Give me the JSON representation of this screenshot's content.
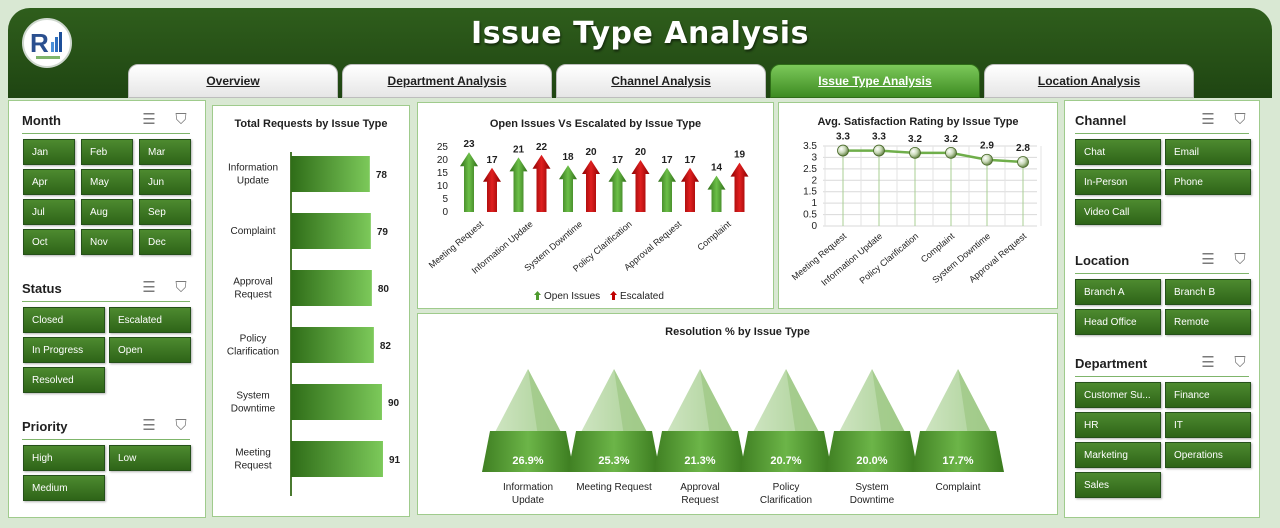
{
  "header": {
    "title": "Issue Type Analysis"
  },
  "tabs": [
    {
      "label": "Overview",
      "active": false
    },
    {
      "label": "Department Analysis",
      "active": false
    },
    {
      "label": "Channel Analysis",
      "active": false
    },
    {
      "label": "Issue Type Analysis",
      "active": true
    },
    {
      "label": "Location Analysis",
      "active": false
    }
  ],
  "filters": {
    "month": {
      "title": "Month",
      "items": [
        "Jan",
        "Feb",
        "Mar",
        "Apr",
        "May",
        "Jun",
        "Jul",
        "Aug",
        "Sep",
        "Oct",
        "Nov",
        "Dec"
      ]
    },
    "status": {
      "title": "Status",
      "items": [
        "Closed",
        "Escalated",
        "In Progress",
        "Open",
        "Resolved"
      ]
    },
    "priority": {
      "title": "Priority",
      "items": [
        "High",
        "Low",
        "Medium"
      ]
    },
    "channel": {
      "title": "Channel",
      "items": [
        "Chat",
        "Email",
        "In-Person",
        "Phone",
        "Video Call"
      ]
    },
    "location": {
      "title": "Location",
      "items": [
        "Branch A",
        "Branch B",
        "Head Office",
        "Remote"
      ]
    },
    "department": {
      "title": "Department",
      "items": [
        "Customer Su...",
        "Finance",
        "HR",
        "IT",
        "Marketing",
        "Operations",
        "Sales"
      ]
    }
  },
  "chart_data": [
    {
      "type": "bar",
      "orientation": "horizontal",
      "title": "Total Requests by Issue Type",
      "categories": [
        "Information Update",
        "Complaint",
        "Approval Request",
        "Policy Clarification",
        "System Downtime",
        "Meeting Request"
      ],
      "values": [
        78,
        79,
        80,
        82,
        90,
        91
      ]
    },
    {
      "type": "bar",
      "title": "Open Issues Vs Escalated by Issue Type",
      "categories": [
        "Meeting Request",
        "Information Update",
        "System Downtime",
        "Policy Clarification",
        "Approval Request",
        "Complaint"
      ],
      "series": [
        {
          "name": "Open Issues",
          "values": [
            23,
            21,
            18,
            17,
            17,
            14
          ],
          "color": "#4e9a2e"
        },
        {
          "name": "Escalated",
          "values": [
            17,
            22,
            20,
            20,
            17,
            19
          ],
          "color": "#c00000"
        }
      ],
      "yticks": [
        "0",
        "5",
        "10",
        "15",
        "20",
        "25"
      ],
      "ylim": [
        0,
        25
      ],
      "legend": "bottom"
    },
    {
      "type": "line",
      "title": "Avg. Satisfaction Rating by Issue Type",
      "categories": [
        "Meeting Request",
        "Information Update",
        "Policy Clarification",
        "Complaint",
        "System Downtime",
        "Approval Request"
      ],
      "values": [
        3.3,
        3.3,
        3.2,
        3.2,
        2.9,
        2.8
      ],
      "yticks": [
        "0",
        "0.5",
        "1",
        "1.5",
        "2",
        "2.5",
        "3",
        "3.5"
      ],
      "ylim": [
        0,
        3.5
      ],
      "grid": true
    },
    {
      "type": "bar",
      "title": "Resolution % by Issue Type",
      "categories": [
        "Information Update",
        "Meeting Request",
        "Approval Request",
        "Policy Clarification",
        "System Downtime",
        "Complaint"
      ],
      "values": [
        "26.9%",
        "25.3%",
        "21.3%",
        "20.7%",
        "20.0%",
        "17.7%"
      ]
    }
  ]
}
